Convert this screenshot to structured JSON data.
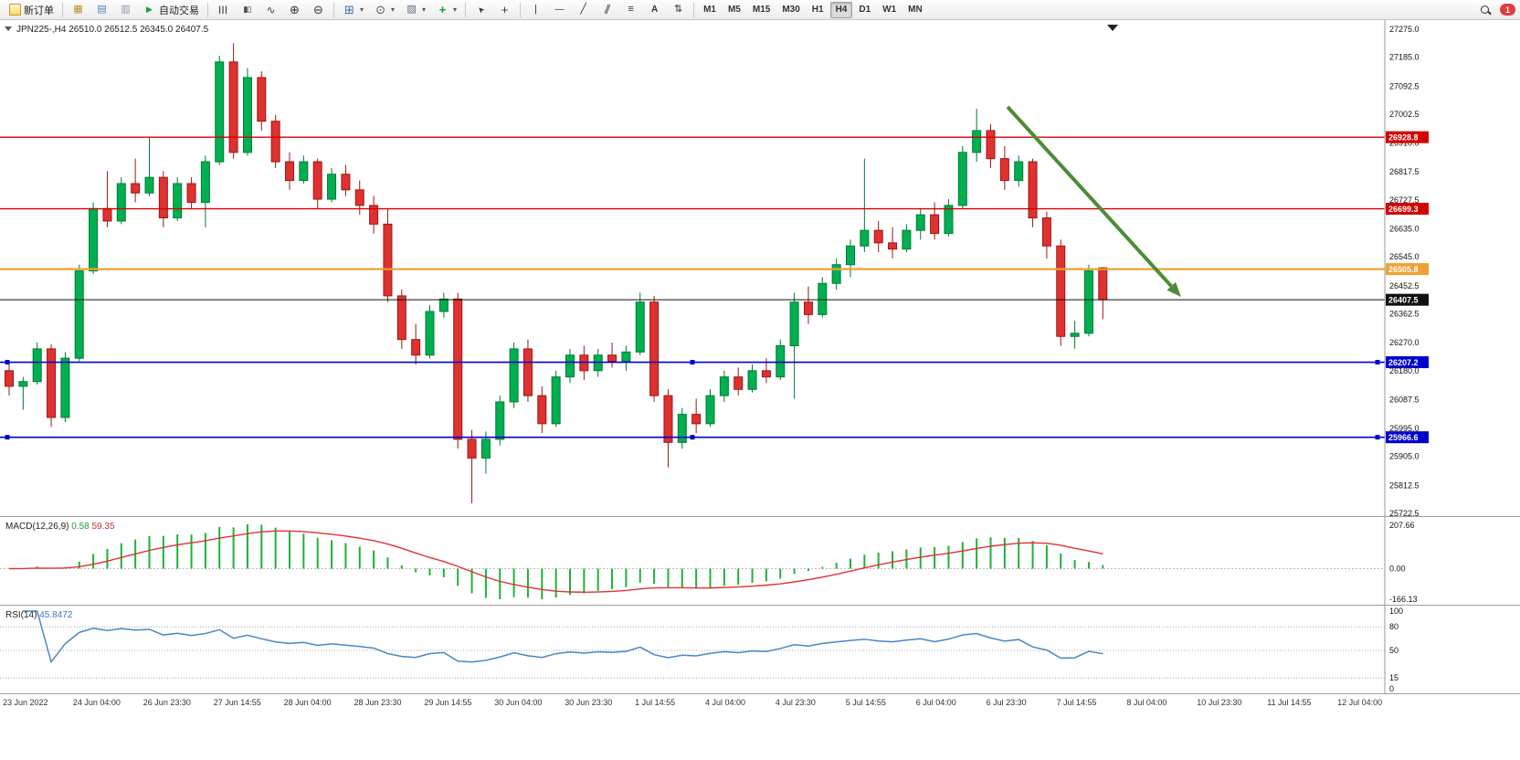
{
  "toolbar": {
    "new_order_label": "新订单",
    "auto_trading_label": "自动交易",
    "timeframes": [
      "M1",
      "M5",
      "M15",
      "M30",
      "H1",
      "H4",
      "D1",
      "W1",
      "MN"
    ],
    "active_timeframe": "H4",
    "notification_count": "1",
    "icon_names": [
      "new-order-icon",
      "market-watch-icon",
      "data-window-icon",
      "navigator-icon",
      "play-icon",
      "bar-chart-icon",
      "candlestick-icon",
      "line-chart-icon",
      "zoom-in-icon",
      "zoom-out-icon",
      "new-chart-icon",
      "period-icon",
      "template-icon",
      "indicators-icon",
      "cursor-icon",
      "crosshair-icon",
      "vertical-line-icon",
      "horizontal-line-icon",
      "trendline-icon",
      "channel-icon",
      "fibonacci-icon",
      "text-icon",
      "arrows-icon",
      "search-icon"
    ]
  },
  "chart": {
    "symbol": "JPN225-,H4",
    "ohlc_text": "26510.0 26512.5 26345.0 26407.5",
    "price_max": 27275.0,
    "price_min": 25722.5,
    "price_axis_labels": [
      "27275.0",
      "27185.0",
      "27092.5",
      "27002.5",
      "26910.0",
      "26817.5",
      "26727.5",
      "26635.0",
      "26545.0",
      "26452.5",
      "26362.5",
      "26270.0",
      "26180.0",
      "26087.5",
      "25995.0",
      "25905.0",
      "25812.5",
      "25722.5"
    ],
    "levels": [
      {
        "price": 26928.8,
        "label": "26928.8",
        "color": "#d40000",
        "width": 1.4,
        "name": "resistance-line-26928"
      },
      {
        "price": 26699.3,
        "label": "26699.3",
        "color": "#d40000",
        "width": 1.4,
        "name": "resistance-line-26699"
      },
      {
        "price": 26505.8,
        "label": "26505.8",
        "color": "#efa033",
        "width": 2.2,
        "name": "pivot-line-26505"
      },
      {
        "price": 26407.5,
        "label": "26407.5",
        "color": "#101010",
        "width": 1.0,
        "name": "bid-price-line"
      },
      {
        "price": 26207.2,
        "label": "26207.2",
        "color": "#0000cc",
        "width": 1.6,
        "handles": true,
        "name": "support-line-26207"
      },
      {
        "price": 25966.6,
        "label": "25966.6",
        "color": "#0000cc",
        "width": 1.6,
        "handles": true,
        "name": "support-line-25966"
      }
    ],
    "trend_arrow": {
      "start": [
        1103,
        95
      ],
      "end": [
        1293,
        303
      ],
      "color": "#4c8c35"
    }
  },
  "chart_data": {
    "type": "candlestick",
    "symbol": "JPN225-",
    "timeframe": "H4",
    "up_color": "#00b050",
    "down_color": "#e03131",
    "up_stroke": "#007a35",
    "down_stroke": "#9e1515",
    "candles": [
      [
        26180,
        26210,
        26100,
        26130
      ],
      [
        26130,
        26160,
        26055,
        26145
      ],
      [
        26145,
        26270,
        26135,
        26250
      ],
      [
        26250,
        26265,
        26000,
        26030
      ],
      [
        26030,
        26240,
        26015,
        26220
      ],
      [
        26220,
        26520,
        26210,
        26500
      ],
      [
        26500,
        26720,
        26490,
        26700
      ],
      [
        26700,
        26820,
        26640,
        26660
      ],
      [
        26660,
        26800,
        26650,
        26780
      ],
      [
        26780,
        26860,
        26720,
        26750
      ],
      [
        26750,
        26930,
        26740,
        26800
      ],
      [
        26800,
        26820,
        26640,
        26670
      ],
      [
        26670,
        26800,
        26660,
        26780
      ],
      [
        26780,
        26800,
        26700,
        26720
      ],
      [
        26720,
        26870,
        26640,
        26850
      ],
      [
        26850,
        27190,
        26840,
        27170
      ],
      [
        27170,
        27230,
        26860,
        26880
      ],
      [
        26880,
        27150,
        26870,
        27120
      ],
      [
        27120,
        27140,
        26950,
        26980
      ],
      [
        26980,
        27000,
        26830,
        26850
      ],
      [
        26850,
        26880,
        26760,
        26790
      ],
      [
        26790,
        26870,
        26780,
        26850
      ],
      [
        26850,
        26860,
        26700,
        26730
      ],
      [
        26730,
        26830,
        26720,
        26810
      ],
      [
        26810,
        26840,
        26740,
        26760
      ],
      [
        26760,
        26790,
        26680,
        26710
      ],
      [
        26710,
        26740,
        26620,
        26650
      ],
      [
        26650,
        26700,
        26400,
        26420
      ],
      [
        26420,
        26440,
        26250,
        26280
      ],
      [
        26280,
        26330,
        26200,
        26230
      ],
      [
        26230,
        26390,
        26220,
        26370
      ],
      [
        26370,
        26430,
        26350,
        26410
      ],
      [
        26410,
        26430,
        25930,
        25960
      ],
      [
        25960,
        25990,
        25755,
        25900
      ],
      [
        25900,
        25985,
        25850,
        25960
      ],
      [
        25960,
        26100,
        25940,
        26080
      ],
      [
        26080,
        26270,
        26060,
        26250
      ],
      [
        26250,
        26280,
        26080,
        26100
      ],
      [
        26100,
        26130,
        25980,
        26010
      ],
      [
        26010,
        26180,
        26000,
        26160
      ],
      [
        26160,
        26250,
        26140,
        26230
      ],
      [
        26230,
        26260,
        26150,
        26180
      ],
      [
        26180,
        26250,
        26160,
        26230
      ],
      [
        26230,
        26270,
        26190,
        26210
      ],
      [
        26210,
        26260,
        26180,
        26240
      ],
      [
        26240,
        26430,
        26230,
        26400
      ],
      [
        26400,
        26420,
        26080,
        26100
      ],
      [
        26100,
        26120,
        25870,
        25950
      ],
      [
        25950,
        26060,
        25930,
        26040
      ],
      [
        26040,
        26090,
        25980,
        26010
      ],
      [
        26010,
        26120,
        26000,
        26100
      ],
      [
        26100,
        26180,
        26080,
        26160
      ],
      [
        26160,
        26190,
        26100,
        26120
      ],
      [
        26120,
        26200,
        26110,
        26180
      ],
      [
        26180,
        26220,
        26140,
        26160
      ],
      [
        26160,
        26280,
        26150,
        26260
      ],
      [
        26260,
        26430,
        26090,
        26400
      ],
      [
        26400,
        26450,
        26330,
        26360
      ],
      [
        26360,
        26480,
        26350,
        26460
      ],
      [
        26460,
        26540,
        26440,
        26520
      ],
      [
        26520,
        26600,
        26480,
        26580
      ],
      [
        26580,
        26860,
        26560,
        26630
      ],
      [
        26630,
        26660,
        26560,
        26590
      ],
      [
        26590,
        26640,
        26540,
        26570
      ],
      [
        26570,
        26650,
        26560,
        26630
      ],
      [
        26630,
        26700,
        26600,
        26680
      ],
      [
        26680,
        26720,
        26600,
        26620
      ],
      [
        26620,
        26730,
        26610,
        26710
      ],
      [
        26710,
        26900,
        26700,
        26880
      ],
      [
        26880,
        27020,
        26850,
        26950
      ],
      [
        26950,
        26970,
        26830,
        26860
      ],
      [
        26860,
        26900,
        26760,
        26790
      ],
      [
        26790,
        26870,
        26770,
        26850
      ],
      [
        26850,
        26860,
        26640,
        26670
      ],
      [
        26670,
        26690,
        26540,
        26580
      ],
      [
        26580,
        26600,
        26260,
        26290
      ],
      [
        26290,
        26340,
        26250,
        26300
      ],
      [
        26300,
        26520,
        26290,
        26500
      ],
      [
        26510,
        26512.5,
        26345,
        26407.5
      ]
    ]
  },
  "macd": {
    "label": "MACD(12,26,9)",
    "value_main": "0.58",
    "value_signal": "59.35",
    "axis": [
      "207.66",
      "0.00",
      "-166.13"
    ],
    "histogram_color": "#1fb135",
    "signal_color": "#e23232",
    "params": {
      "fast": 12,
      "slow": 26,
      "signal": 9
    }
  },
  "rsi": {
    "label": "RSI(14)",
    "value": "45.8472",
    "period": 14,
    "axis": [
      "100",
      "80",
      "50",
      "15",
      "0"
    ],
    "levels": [
      80,
      50,
      15
    ],
    "line_color": "#4a86c8"
  },
  "time_axis": {
    "labels": [
      "23 Jun 2022",
      "24 Jun 04:00",
      "26 Jun 23:30",
      "27 Jun 14:55",
      "28 Jun 04:00",
      "28 Jun 23:30",
      "29 Jun 14:55",
      "30 Jun 04:00",
      "30 Jun 23:30",
      "1 Jul 14:55",
      "4 Jul 04:00",
      "4 Jul 23:30",
      "5 Jul 14:55",
      "6 Jul 04:00",
      "6 Jul 23:30",
      "7 Jul 14:55",
      "8 Jul 04:00",
      "10 Jul 23:30",
      "11 Jul 14:55",
      "12 Jul 04:00"
    ]
  }
}
